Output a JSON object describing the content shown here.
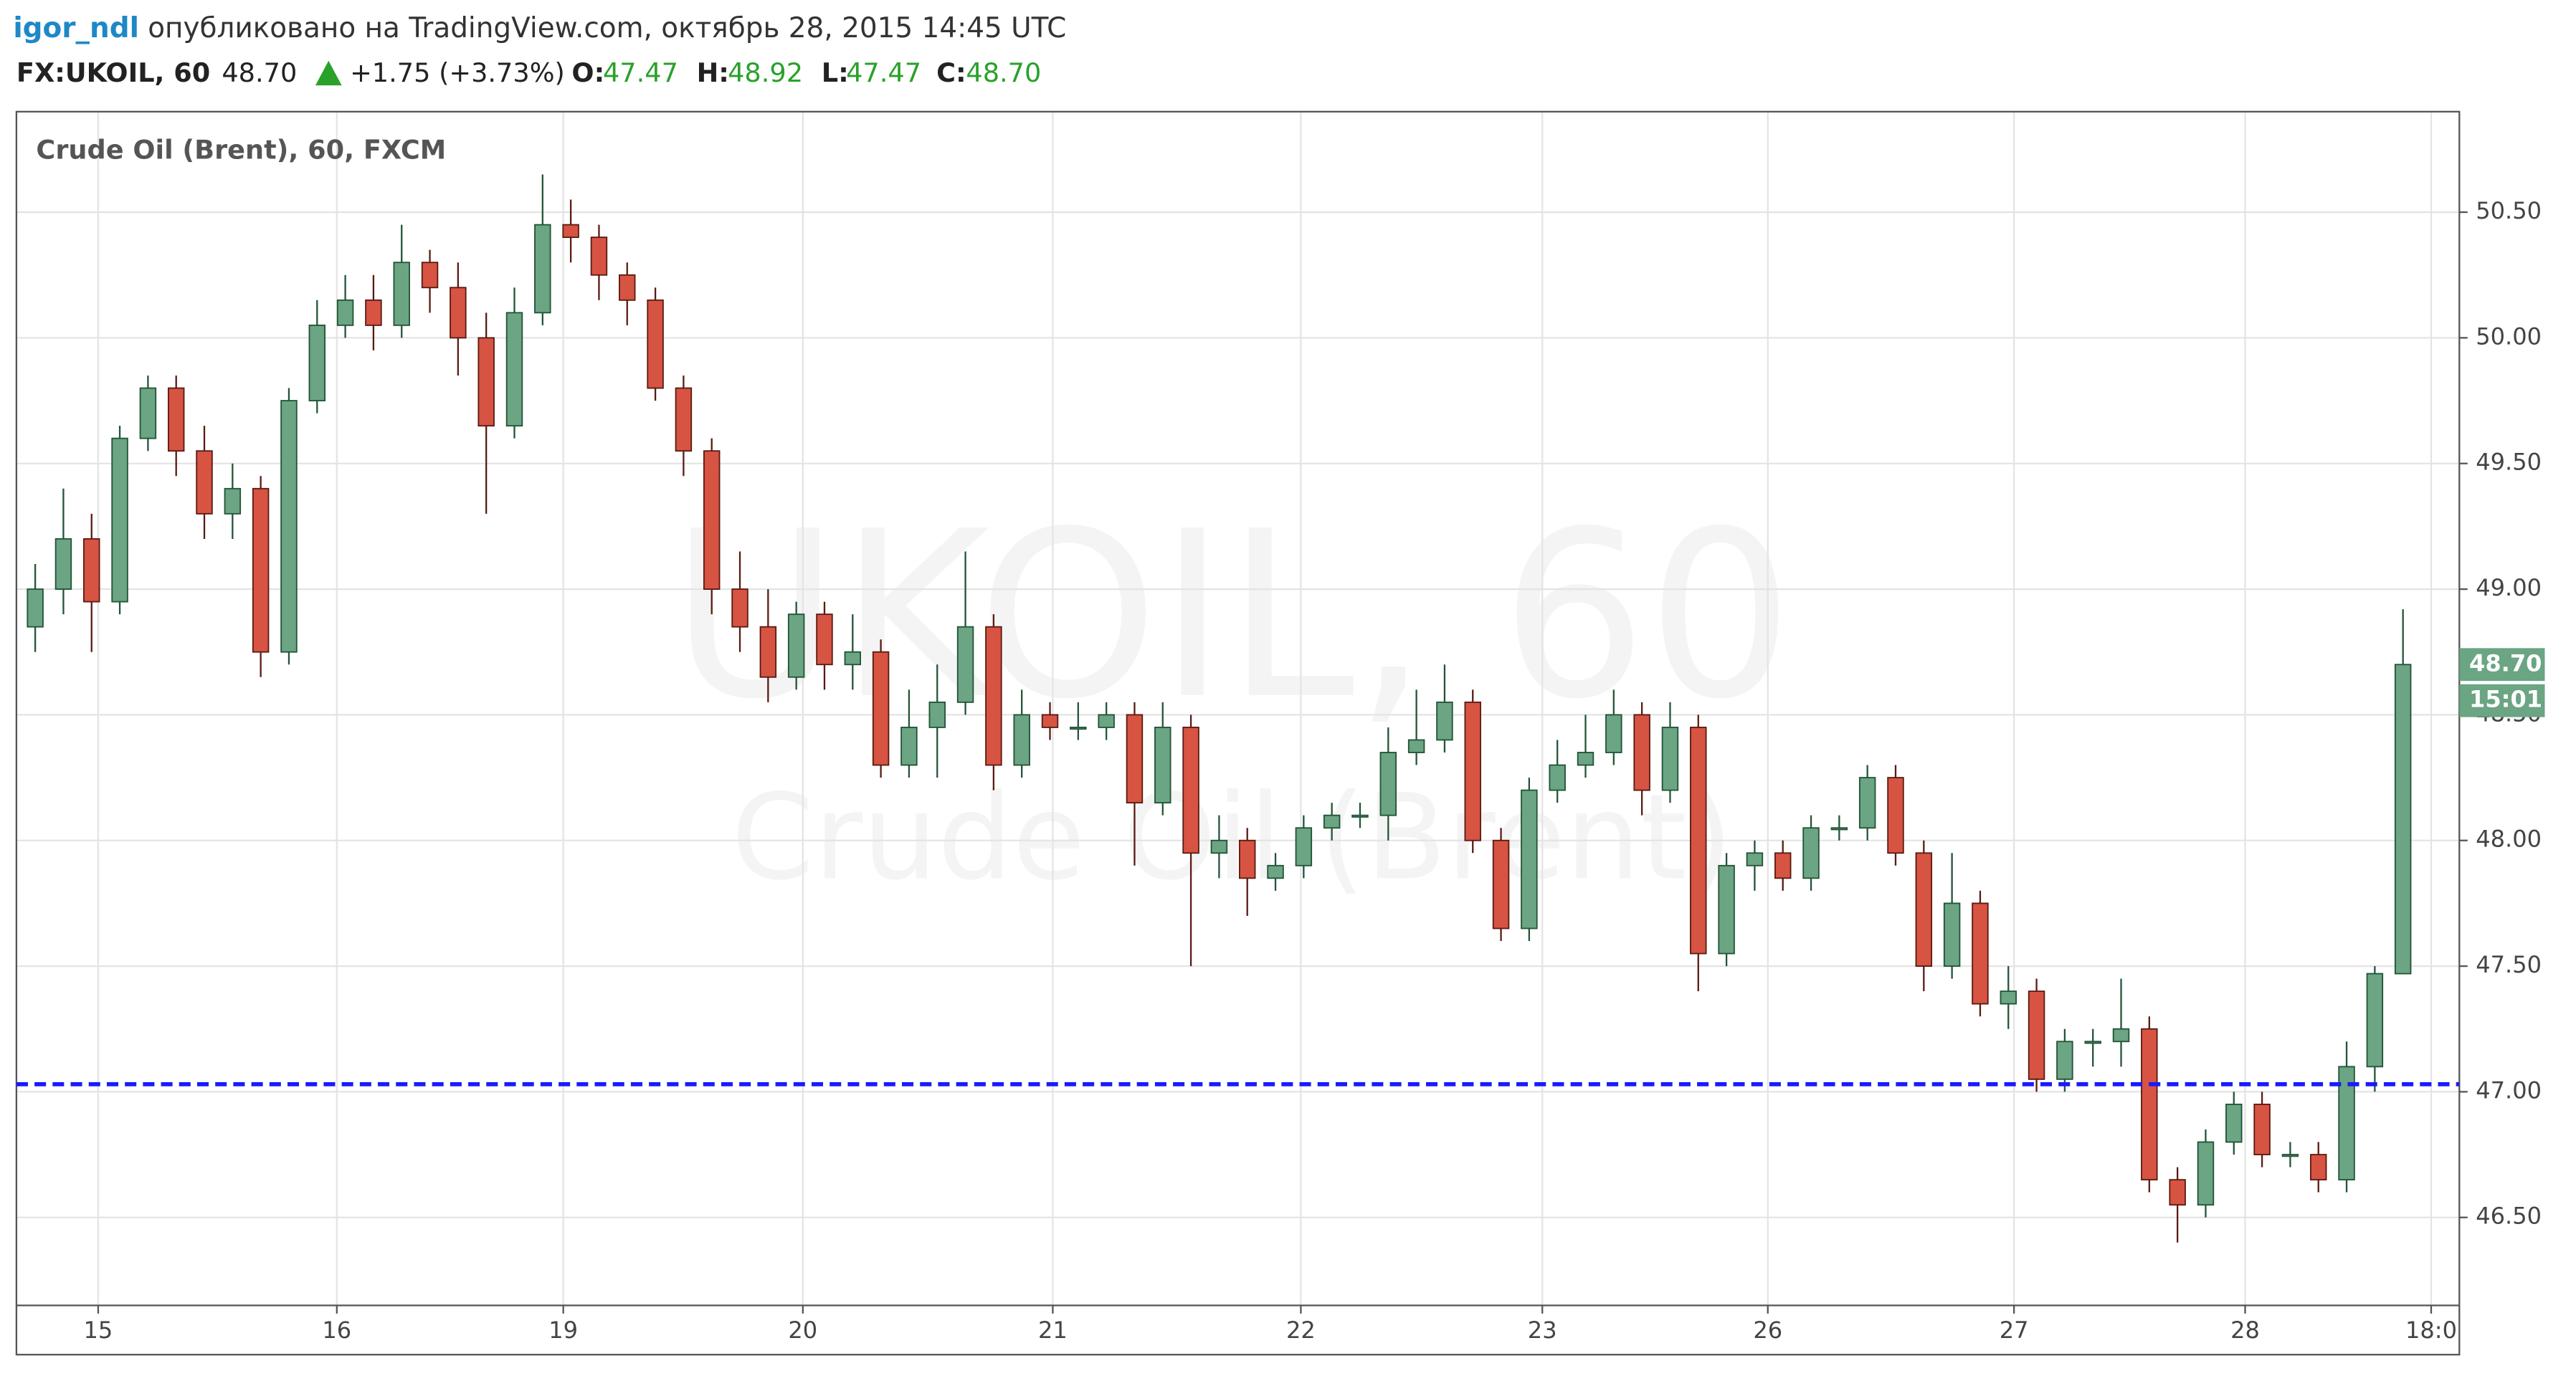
{
  "header": {
    "author": "igor_ndl",
    "published": "опубликовано на TradingView.com, октябрь 28, 2015 14:45 UTC",
    "symbol": "FX:UKOIL, 60",
    "last": "48.70",
    "change": "+1.75 (+3.73%)",
    "o_label": "O:",
    "o": "47.47",
    "h_label": "H:",
    "h": "48.92",
    "l_label": "L:",
    "l": "47.47",
    "c_label": "C:",
    "c": "48.70"
  },
  "chart_data": {
    "type": "candlestick",
    "title": "Crude Oil (Brent), 60, FXCM",
    "watermark": "UKOIL, 60",
    "watermark_sub": "Crude Oil (Brent)",
    "up_color": "#6ba583",
    "up_border": "#225437",
    "down_color": "#d75442",
    "down_border": "#5b1a13",
    "grid": true,
    "xlim": [
      0,
      260
    ],
    "ylim": [
      46.15,
      50.9
    ],
    "xticks": [
      {
        "value": 8.7,
        "label": "15"
      },
      {
        "value": 34.1,
        "label": "16"
      },
      {
        "value": 58.2,
        "label": "19"
      },
      {
        "value": 83.7,
        "label": "20"
      },
      {
        "value": 110.3,
        "label": "21"
      },
      {
        "value": 136.7,
        "label": "22"
      },
      {
        "value": 162.4,
        "label": "23"
      },
      {
        "value": 186.4,
        "label": "26"
      },
      {
        "value": 212.6,
        "label": "27"
      },
      {
        "value": 237.2,
        "label": "28"
      },
      {
        "value": 257,
        "label": "18:0"
      }
    ],
    "yticks": [
      {
        "value": 46.5,
        "label": "46.50"
      },
      {
        "value": 47,
        "label": "47.00"
      },
      {
        "value": 47.5,
        "label": "47.50"
      },
      {
        "value": 48,
        "label": "48.00"
      },
      {
        "value": 48.5,
        "label": "48.50"
      },
      {
        "value": 49,
        "label": "49.00"
      },
      {
        "value": 49.5,
        "label": "49.50"
      },
      {
        "value": 50,
        "label": "50.00"
      },
      {
        "value": 50.5,
        "label": "50.50"
      }
    ],
    "x": [
      2,
      5,
      8,
      11,
      14,
      17,
      20,
      23,
      26,
      29,
      32,
      35,
      38,
      41,
      44,
      47,
      50,
      53,
      56,
      59,
      62,
      65,
      68,
      71,
      74,
      77,
      80,
      83,
      86,
      89,
      92,
      95,
      98,
      101,
      104,
      107,
      110,
      113,
      116,
      119,
      122,
      125,
      128,
      131,
      134,
      137,
      140,
      143,
      146,
      149,
      152,
      155,
      158,
      161,
      164,
      167,
      170,
      173,
      176,
      179,
      182,
      185,
      188,
      191,
      194,
      197,
      200,
      203,
      206,
      209,
      212,
      215,
      218,
      221,
      224,
      227,
      230,
      233,
      236,
      239,
      242,
      245,
      248,
      251,
      254
    ],
    "open": [
      48.85,
      49.0,
      49.2,
      48.95,
      49.6,
      49.8,
      49.55,
      49.3,
      49.4,
      48.75,
      49.75,
      50.05,
      50.15,
      50.05,
      50.3,
      50.2,
      50.0,
      49.65,
      50.1,
      50.45,
      50.4,
      50.25,
      50.15,
      49.8,
      49.55,
      49.0,
      48.85,
      48.65,
      48.9,
      48.7,
      48.75,
      48.3,
      48.45,
      48.55,
      48.85,
      48.3,
      48.5,
      48.45,
      48.45,
      48.5,
      48.15,
      48.45,
      47.95,
      48.0,
      47.85,
      47.9,
      48.05,
      48.1,
      48.1,
      48.35,
      48.4,
      48.55,
      48.0,
      47.65,
      48.2,
      48.3,
      48.35,
      48.5,
      48.2,
      48.45,
      47.55,
      47.9,
      47.95,
      47.85,
      48.05,
      48.05,
      48.25,
      47.95,
      47.5,
      47.75,
      47.35,
      47.4,
      47.05,
      47.2,
      47.2,
      47.25,
      46.65,
      46.55,
      46.8,
      46.95,
      46.75,
      46.75,
      46.65,
      47.1,
      47.47
    ],
    "high": [
      49.1,
      49.4,
      49.3,
      49.65,
      49.85,
      49.85,
      49.65,
      49.5,
      49.45,
      49.8,
      50.15,
      50.25,
      50.25,
      50.45,
      50.35,
      50.3,
      50.1,
      50.2,
      50.65,
      50.55,
      50.45,
      50.3,
      50.2,
      49.85,
      49.6,
      49.15,
      49.0,
      48.95,
      48.95,
      48.9,
      48.8,
      48.6,
      48.7,
      49.15,
      48.9,
      48.6,
      48.55,
      48.55,
      48.55,
      48.55,
      48.55,
      48.5,
      48.1,
      48.05,
      47.95,
      48.1,
      48.15,
      48.15,
      48.45,
      48.6,
      48.7,
      48.6,
      48.05,
      48.25,
      48.4,
      48.5,
      48.6,
      48.55,
      48.55,
      48.5,
      47.95,
      48.0,
      48.0,
      48.1,
      48.1,
      48.3,
      48.3,
      48.0,
      47.95,
      47.8,
      47.5,
      47.45,
      47.25,
      47.25,
      47.45,
      47.3,
      46.7,
      46.85,
      47.0,
      47.0,
      46.8,
      46.8,
      47.2,
      47.5,
      48.92
    ],
    "low": [
      48.75,
      48.9,
      48.75,
      48.9,
      49.55,
      49.45,
      49.2,
      49.2,
      48.65,
      48.7,
      49.7,
      50.0,
      49.95,
      50.0,
      50.1,
      49.85,
      49.3,
      49.6,
      50.05,
      50.3,
      50.15,
      50.05,
      49.75,
      49.45,
      48.9,
      48.75,
      48.55,
      48.6,
      48.6,
      48.6,
      48.25,
      48.25,
      48.25,
      48.5,
      48.2,
      48.25,
      48.4,
      48.4,
      48.4,
      47.9,
      48.1,
      47.5,
      47.85,
      47.7,
      47.8,
      47.85,
      48.0,
      48.05,
      48.0,
      48.3,
      48.35,
      47.95,
      47.6,
      47.6,
      48.15,
      48.25,
      48.3,
      48.1,
      48.15,
      47.4,
      47.5,
      47.8,
      47.8,
      47.8,
      48.0,
      48.0,
      47.9,
      47.4,
      47.45,
      47.3,
      47.25,
      47.0,
      47.0,
      47.1,
      47.1,
      46.6,
      46.4,
      46.5,
      46.75,
      46.7,
      46.7,
      46.6,
      46.6,
      47.0,
      47.47
    ],
    "close": [
      49.0,
      49.2,
      48.95,
      49.6,
      49.8,
      49.55,
      49.3,
      49.4,
      48.75,
      49.75,
      50.05,
      50.15,
      50.05,
      50.3,
      50.2,
      50.0,
      49.65,
      50.1,
      50.45,
      50.4,
      50.25,
      50.15,
      49.8,
      49.55,
      49.0,
      48.85,
      48.65,
      48.9,
      48.7,
      48.75,
      48.3,
      48.45,
      48.55,
      48.85,
      48.3,
      48.5,
      48.45,
      48.45,
      48.5,
      48.15,
      48.45,
      47.95,
      48.0,
      47.85,
      47.9,
      48.05,
      48.1,
      48.1,
      48.35,
      48.4,
      48.55,
      48.0,
      47.65,
      48.2,
      48.3,
      48.35,
      48.5,
      48.2,
      48.45,
      47.55,
      47.9,
      47.95,
      47.85,
      48.05,
      48.05,
      48.25,
      47.95,
      47.5,
      47.75,
      47.35,
      47.4,
      47.05,
      47.2,
      47.2,
      47.25,
      46.65,
      46.55,
      46.8,
      46.95,
      46.75,
      46.75,
      46.65,
      47.1,
      47.47,
      48.7
    ],
    "hline": {
      "value": 47.03,
      "color": "#1a1aff"
    },
    "last_price": {
      "value": 48.7,
      "label": "48.70"
    },
    "countdown": "15:01"
  }
}
